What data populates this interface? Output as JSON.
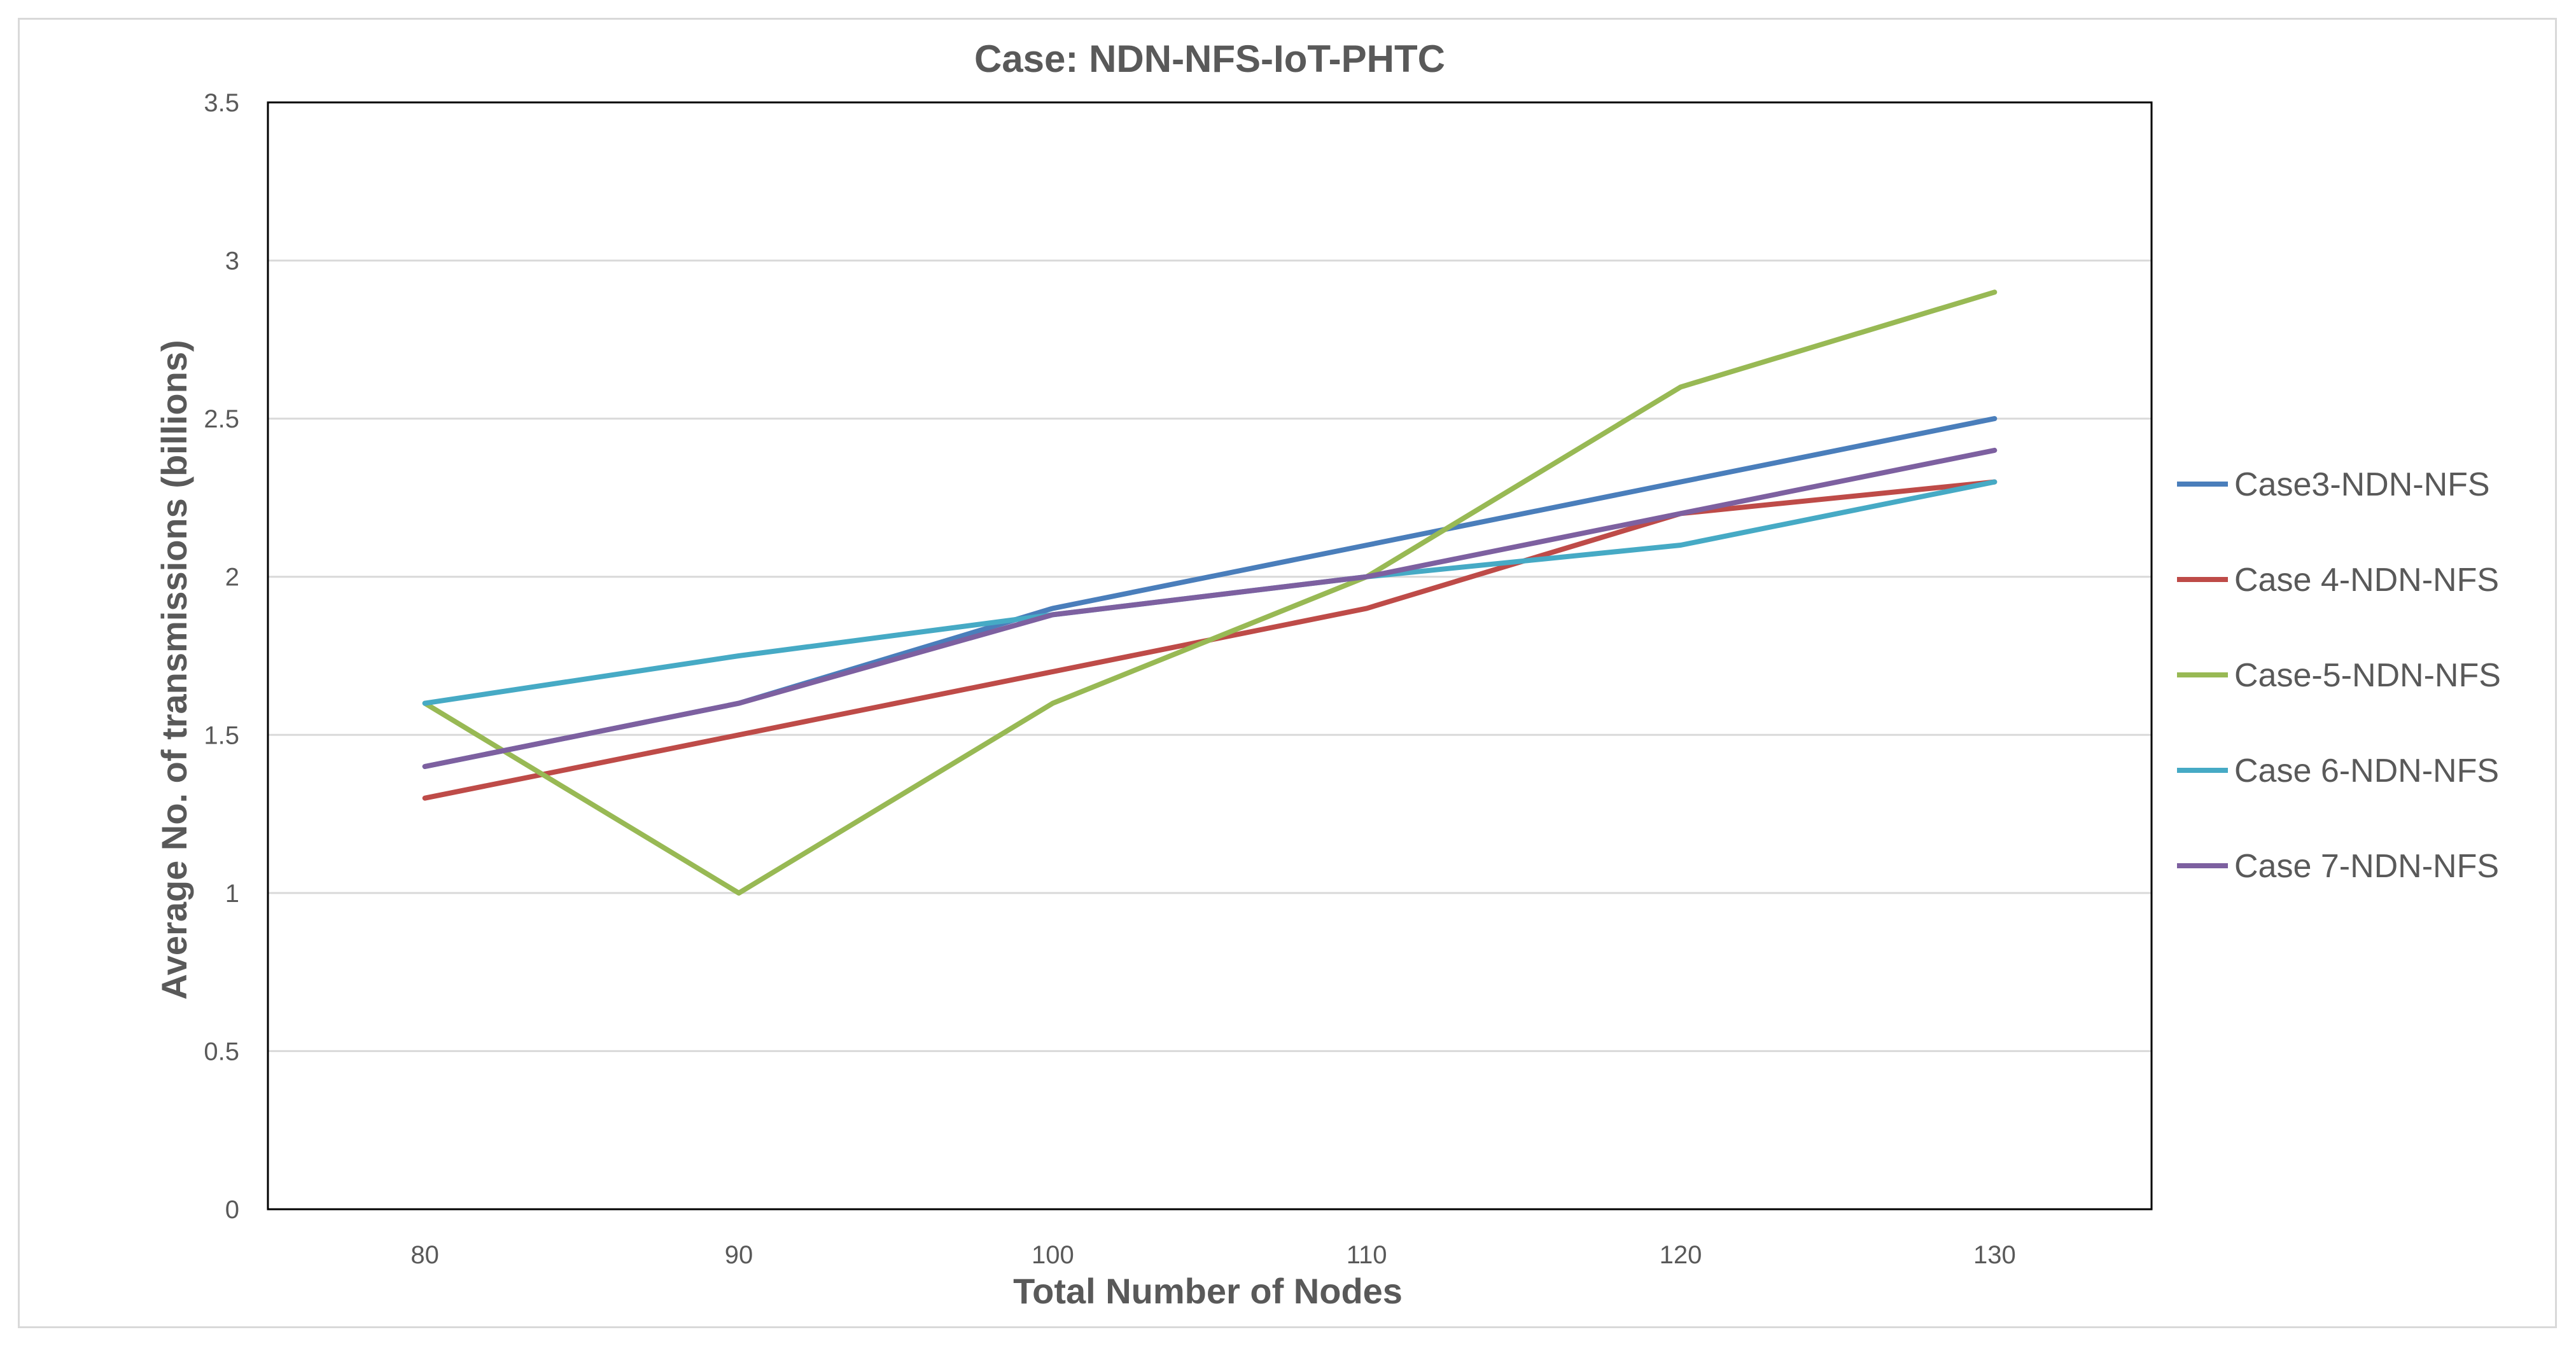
{
  "chart_data": {
    "type": "line",
    "title": "Case: NDN-NFS-IoT-PHTC",
    "xlabel": "Total Number of Nodes",
    "ylabel": "Average No. of transmissions (billions)",
    "categories": [
      "80",
      "90",
      "100",
      "110",
      "120",
      "130"
    ],
    "y_ticks": [
      "0",
      "0.5",
      "1",
      "1.5",
      "2",
      "2.5",
      "3",
      "3.5"
    ],
    "ylim": [
      0,
      3.5
    ],
    "grid": true,
    "legend_position": "right",
    "series": [
      {
        "name": "Case3-NDN-NFS",
        "color": "#4a7ebb",
        "values": [
          1.4,
          1.6,
          1.9,
          2.1,
          2.3,
          2.5
        ]
      },
      {
        "name": "Case 4-NDN-NFS",
        "color": "#be4b48",
        "values": [
          1.3,
          1.5,
          1.7,
          1.9,
          2.2,
          2.3
        ]
      },
      {
        "name": "Case-5-NDN-NFS",
        "color": "#98b954",
        "values": [
          1.6,
          1.0,
          1.6,
          2.0,
          2.6,
          2.9
        ]
      },
      {
        "name": "Case 6-NDN-NFS",
        "color": "#46aac5",
        "values": [
          1.6,
          1.75,
          1.88,
          2.0,
          2.1,
          2.3
        ]
      },
      {
        "name": "Case 7-NDN-NFS",
        "color": "#7d60a0",
        "values": [
          1.4,
          1.6,
          1.88,
          2.0,
          2.2,
          2.4
        ]
      }
    ]
  }
}
